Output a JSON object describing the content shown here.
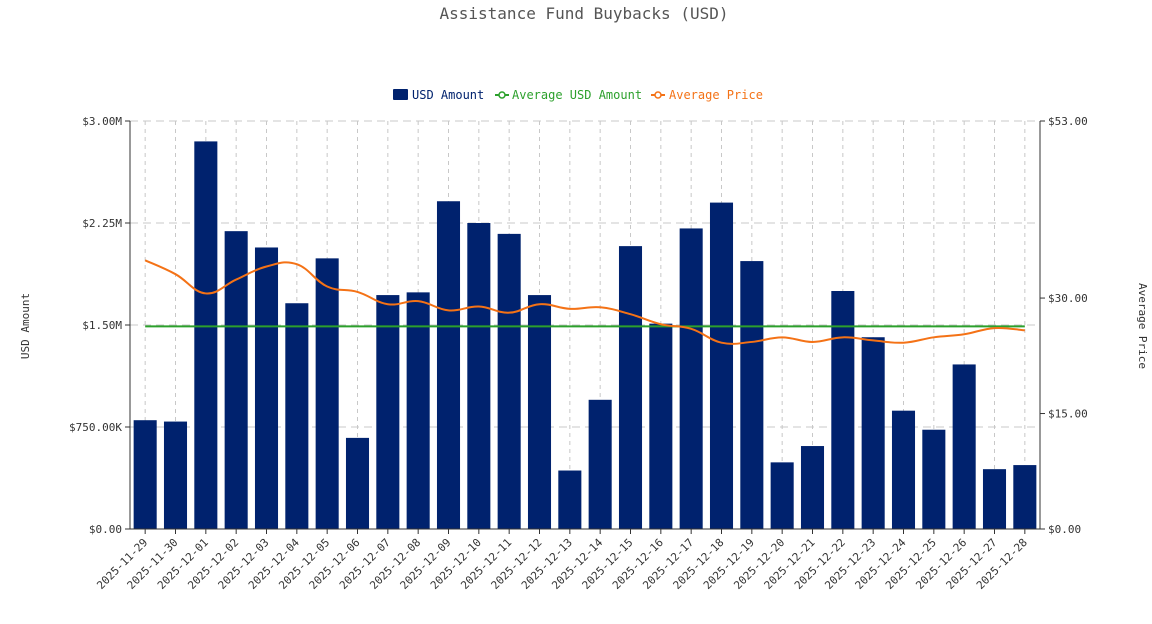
{
  "colors": {
    "bar": "#00226e",
    "avg_usd": "#2ca02c",
    "avg_price": "#f47216",
    "grid": "#c8c8c8",
    "axis": "#333333"
  },
  "legend": [
    {
      "label": "USD Amount",
      "type": "bar"
    },
    {
      "label": "Average USD Amount",
      "type": "line"
    },
    {
      "label": "Average Price",
      "type": "line"
    }
  ],
  "chart_data": {
    "type": "bar",
    "title": "Assistance Fund Buybacks (USD)",
    "categories": [
      "2025-11-29",
      "2025-11-30",
      "2025-12-01",
      "2025-12-02",
      "2025-12-03",
      "2025-12-04",
      "2025-12-05",
      "2025-12-06",
      "2025-12-07",
      "2025-12-08",
      "2025-12-09",
      "2025-12-10",
      "2025-12-11",
      "2025-12-12",
      "2025-12-13",
      "2025-12-14",
      "2025-12-15",
      "2025-12-16",
      "2025-12-17",
      "2025-12-18",
      "2025-12-19",
      "2025-12-20",
      "2025-12-21",
      "2025-12-22",
      "2025-12-23",
      "2025-12-24",
      "2025-12-25",
      "2025-12-26",
      "2025-12-27",
      "2025-12-28"
    ],
    "series": [
      {
        "name": "USD Amount",
        "axis": "left",
        "kind": "bar",
        "values": [
          800000,
          790000,
          2850000,
          2190000,
          2070000,
          1660000,
          1990000,
          670000,
          1720000,
          1740000,
          2410000,
          2250000,
          2170000,
          1720000,
          430000,
          950000,
          2080000,
          1510000,
          2210000,
          2400000,
          1970000,
          490000,
          610000,
          1750000,
          1410000,
          870000,
          730000,
          1210000,
          440000,
          470000
        ]
      },
      {
        "name": "Average USD Amount",
        "axis": "left",
        "kind": "line",
        "values": [
          1490000,
          1490000,
          1490000,
          1490000,
          1490000,
          1490000,
          1490000,
          1490000,
          1490000,
          1490000,
          1490000,
          1490000,
          1490000,
          1490000,
          1490000,
          1490000,
          1490000,
          1490000,
          1490000,
          1490000,
          1490000,
          1490000,
          1490000,
          1490000,
          1490000,
          1490000,
          1490000,
          1490000,
          1490000,
          1490000
        ]
      },
      {
        "name": "Average Price",
        "axis": "right",
        "kind": "line",
        "values": [
          34.9,
          33.1,
          30.6,
          32.4,
          34.1,
          34.4,
          31.5,
          30.8,
          29.2,
          29.6,
          28.4,
          28.9,
          28.1,
          29.2,
          28.6,
          28.8,
          27.9,
          26.6,
          26.0,
          24.2,
          24.3,
          24.9,
          24.3,
          24.9,
          24.5,
          24.2,
          24.9,
          25.3,
          26.1,
          25.8
        ]
      }
    ],
    "y_left": {
      "label": "USD Amount",
      "range": [
        0,
        3000000
      ],
      "ticks": [
        "$0.00",
        "$750.00K",
        "$1.50M",
        "$2.25M",
        "$3.00M"
      ]
    },
    "y_right": {
      "label": "Average Price",
      "range": [
        0,
        53
      ],
      "tick_values": [
        0,
        15,
        30,
        53
      ],
      "ticks": [
        "$0.00",
        "$15.00",
        "$30.00",
        "$53.00"
      ]
    },
    "grid": true,
    "legend_position": "top-center"
  }
}
